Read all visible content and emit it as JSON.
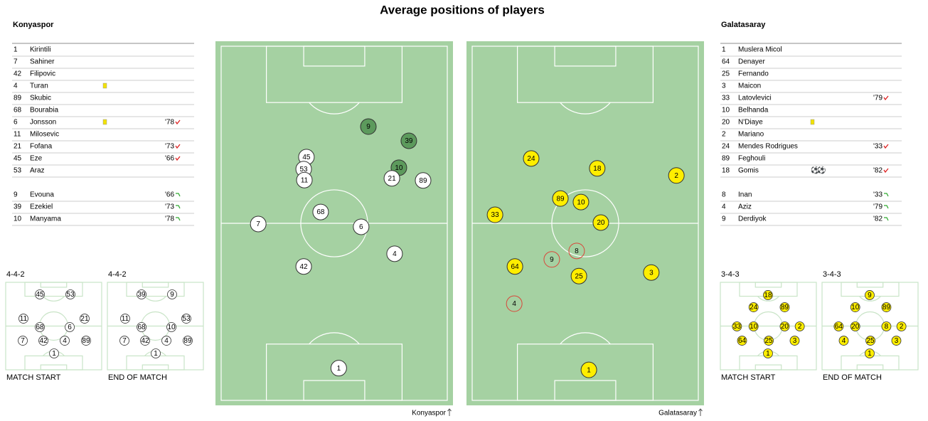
{
  "title": "Average positions of players",
  "teams": [
    {
      "name": "Konyaspor",
      "marker_color": "#ffffff",
      "marker_text": "#000000",
      "sub_color": "#5c9a5c",
      "lineup": [
        {
          "number": "1",
          "name": "Kirintili"
        },
        {
          "number": "7",
          "name": "Sahiner"
        },
        {
          "number": "42",
          "name": "Filipovic"
        },
        {
          "number": "4",
          "name": "Turan",
          "card": "yellow"
        },
        {
          "number": "89",
          "name": "Skubic"
        },
        {
          "number": "68",
          "name": "Bourabia"
        },
        {
          "number": "6",
          "name": "Jonsson",
          "card": "yellow",
          "off": "'78"
        },
        {
          "number": "11",
          "name": "Milosevic"
        },
        {
          "number": "21",
          "name": "Fofana",
          "off": "'73"
        },
        {
          "number": "45",
          "name": "Eze",
          "off": "'66"
        },
        {
          "number": "53",
          "name": "Araz"
        }
      ],
      "bench": [
        {
          "number": "9",
          "name": "Evouna",
          "on": "'66"
        },
        {
          "number": "39",
          "name": "Ezekiel",
          "on": "'73"
        },
        {
          "number": "10",
          "name": "Manyama",
          "on": "'78"
        }
      ],
      "formations": [
        {
          "name": "4-4-2",
          "label": "MATCH START",
          "players": [
            {
              "number": "45",
              "x": 35.6,
              "y": 13.8
            },
            {
              "number": "53",
              "x": 67.4,
              "y": 13.8
            },
            {
              "number": "11",
              "x": 18.5,
              "y": 41.5
            },
            {
              "number": "68",
              "x": 35.6,
              "y": 51.2
            },
            {
              "number": "6",
              "x": 66.7,
              "y": 51.2
            },
            {
              "number": "21",
              "x": 82.2,
              "y": 41.5
            },
            {
              "number": "7",
              "x": 17.8,
              "y": 66.7
            },
            {
              "number": "42",
              "x": 39.3,
              "y": 66.7
            },
            {
              "number": "4",
              "x": 61.5,
              "y": 66.7
            },
            {
              "number": "89",
              "x": 83.7,
              "y": 66.7
            },
            {
              "number": "1",
              "x": 50.4,
              "y": 81.3
            }
          ]
        },
        {
          "name": "4-4-2",
          "label": "END OF MATCH",
          "players": [
            {
              "number": "39",
              "x": 35.6,
              "y": 13.8
            },
            {
              "number": "9",
              "x": 67.4,
              "y": 13.8
            },
            {
              "number": "11",
              "x": 18.5,
              "y": 41.5
            },
            {
              "number": "68",
              "x": 35.6,
              "y": 51.2
            },
            {
              "number": "10",
              "x": 66.7,
              "y": 51.2
            },
            {
              "number": "53",
              "x": 82.2,
              "y": 41.5
            },
            {
              "number": "7",
              "x": 17.8,
              "y": 66.7
            },
            {
              "number": "42",
              "x": 39.3,
              "y": 66.7
            },
            {
              "number": "4",
              "x": 61.5,
              "y": 66.7
            },
            {
              "number": "89",
              "x": 83.7,
              "y": 66.7
            },
            {
              "number": "1",
              "x": 50.4,
              "y": 81.3
            }
          ]
        }
      ],
      "pitch": [
        {
          "number": "9",
          "x": 65.1,
          "y": 22.7,
          "sub": true
        },
        {
          "number": "39",
          "x": 83.0,
          "y": 26.7,
          "sub": true
        },
        {
          "number": "45",
          "x": 37.7,
          "y": 31.3
        },
        {
          "number": "53",
          "x": 36.5,
          "y": 34.7
        },
        {
          "number": "11",
          "x": 36.8,
          "y": 37.8
        },
        {
          "number": "10",
          "x": 78.6,
          "y": 34.3,
          "sub": true
        },
        {
          "number": "21",
          "x": 75.5,
          "y": 37.3
        },
        {
          "number": "89",
          "x": 89.3,
          "y": 37.9
        },
        {
          "number": "68",
          "x": 44.0,
          "y": 46.8
        },
        {
          "number": "7",
          "x": 16.4,
          "y": 50.2
        },
        {
          "number": "6",
          "x": 61.9,
          "y": 51.0
        },
        {
          "number": "4",
          "x": 76.7,
          "y": 58.6
        },
        {
          "number": "42",
          "x": 36.5,
          "y": 62.2
        },
        {
          "number": "1",
          "x": 52.0,
          "y": 90.9
        }
      ]
    },
    {
      "name": "Galatasaray",
      "marker_color": "#ffee00",
      "marker_text": "#cc0000",
      "sub_color": "#d9463a",
      "lineup": [
        {
          "number": "1",
          "name": "Muslera Micol"
        },
        {
          "number": "64",
          "name": "Denayer"
        },
        {
          "number": "25",
          "name": "Fernando"
        },
        {
          "number": "3",
          "name": "Maicon"
        },
        {
          "number": "33",
          "name": "Latovlevici",
          "off": "'79"
        },
        {
          "number": "10",
          "name": "Belhanda"
        },
        {
          "number": "20",
          "name": "N'Diaye",
          "card": "yellow"
        },
        {
          "number": "2",
          "name": "Mariano"
        },
        {
          "number": "24",
          "name": "Mendes Rodrigues",
          "off": "'33"
        },
        {
          "number": "89",
          "name": "Feghouli"
        },
        {
          "number": "18",
          "name": "Gomis",
          "goals": 2,
          "off": "'82"
        }
      ],
      "bench": [
        {
          "number": "8",
          "name": "Inan",
          "on": "'33"
        },
        {
          "number": "4",
          "name": "Aziz",
          "on": "'79"
        },
        {
          "number": "9",
          "name": "Derdiyok",
          "on": "'82"
        }
      ],
      "formations": [
        {
          "name": "3-4-3",
          "label": "MATCH START",
          "players": [
            {
              "number": "18",
              "x": 49.6,
              "y": 14.6
            },
            {
              "number": "24",
              "x": 34.6,
              "y": 28.5
            },
            {
              "number": "89",
              "x": 67.0,
              "y": 28.5
            },
            {
              "number": "33",
              "x": 17.3,
              "y": 50.4
            },
            {
              "number": "10",
              "x": 34.6,
              "y": 50.4
            },
            {
              "number": "20",
              "x": 67.0,
              "y": 50.4
            },
            {
              "number": "2",
              "x": 82.7,
              "y": 50.4
            },
            {
              "number": "64",
              "x": 22.6,
              "y": 66.7
            },
            {
              "number": "25",
              "x": 50.4,
              "y": 66.7
            },
            {
              "number": "3",
              "x": 77.4,
              "y": 66.7
            },
            {
              "number": "1",
              "x": 49.6,
              "y": 81.3
            }
          ]
        },
        {
          "name": "3-4-3",
          "label": "END OF MATCH",
          "players": [
            {
              "number": "9",
              "x": 49.6,
              "y": 14.6
            },
            {
              "number": "10",
              "x": 34.6,
              "y": 28.5
            },
            {
              "number": "89",
              "x": 67.0,
              "y": 28.5
            },
            {
              "number": "64",
              "x": 17.3,
              "y": 50.4
            },
            {
              "number": "20",
              "x": 34.6,
              "y": 50.4
            },
            {
              "number": "8",
              "x": 67.0,
              "y": 50.4
            },
            {
              "number": "2",
              "x": 82.7,
              "y": 50.4
            },
            {
              "number": "4",
              "x": 22.6,
              "y": 66.7
            },
            {
              "number": "25",
              "x": 50.4,
              "y": 66.7
            },
            {
              "number": "3",
              "x": 77.4,
              "y": 66.7
            },
            {
              "number": "1",
              "x": 49.6,
              "y": 81.3
            }
          ]
        }
      ],
      "pitch": [
        {
          "number": "24",
          "x": 26.1,
          "y": 31.7
        },
        {
          "number": "18",
          "x": 55.3,
          "y": 34.5
        },
        {
          "number": "2",
          "x": 90.3,
          "y": 36.5
        },
        {
          "number": "89",
          "x": 39.0,
          "y": 43.0
        },
        {
          "number": "10",
          "x": 48.1,
          "y": 44.0
        },
        {
          "number": "33",
          "x": 10.1,
          "y": 47.6
        },
        {
          "number": "20",
          "x": 56.9,
          "y": 49.8
        },
        {
          "number": "8",
          "x": 46.2,
          "y": 57.8,
          "sub": true
        },
        {
          "number": "9",
          "x": 35.2,
          "y": 60.2,
          "sub": true
        },
        {
          "number": "64",
          "x": 18.9,
          "y": 62.2
        },
        {
          "number": "25",
          "x": 47.2,
          "y": 64.9
        },
        {
          "number": "3",
          "x": 79.2,
          "y": 63.9
        },
        {
          "number": "4",
          "x": 18.6,
          "y": 72.7,
          "sub": true
        },
        {
          "number": "1",
          "x": 51.6,
          "y": 91.4
        }
      ]
    }
  ]
}
